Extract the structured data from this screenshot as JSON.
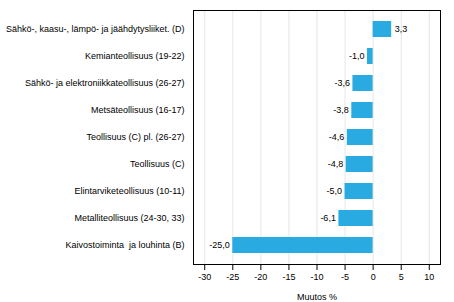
{
  "chart_data": {
    "type": "bar",
    "orientation": "horizontal",
    "categories": [
      "Kaivostoiminta  ja louhinta (B)",
      "Metalliteollisuus (24-30, 33)",
      "Elintarviketeollisuus (10-11)",
      "Teollisuus (C)",
      "Teollisuus (C) pl. (26-27)",
      "Metsäteollisuus (16-17)",
      "Sähkö- ja elektroniikkateollisuus (26-27)",
      "Kemianteollisuus (19-22)",
      "Sähkö-, kaasu-, lämpö- ja jäähdytysliiket. (D)"
    ],
    "values": [
      -25.0,
      -6.1,
      -5.0,
      -4.8,
      -4.6,
      -3.8,
      -3.6,
      -1.0,
      3.3
    ],
    "value_labels": [
      "-25,0",
      "-6,1",
      "-5,0",
      "-4,8",
      "-4,6",
      "-3,8",
      "-3,6",
      "-1,0",
      "3,3"
    ],
    "data_labels": true,
    "color": "#29ABE2",
    "xlabel": "Muutos %",
    "xlim": [
      -32,
      12
    ],
    "xticks": [
      -30,
      -25,
      -20,
      -15,
      -10,
      -5,
      0,
      5,
      10
    ],
    "grid": true
  }
}
